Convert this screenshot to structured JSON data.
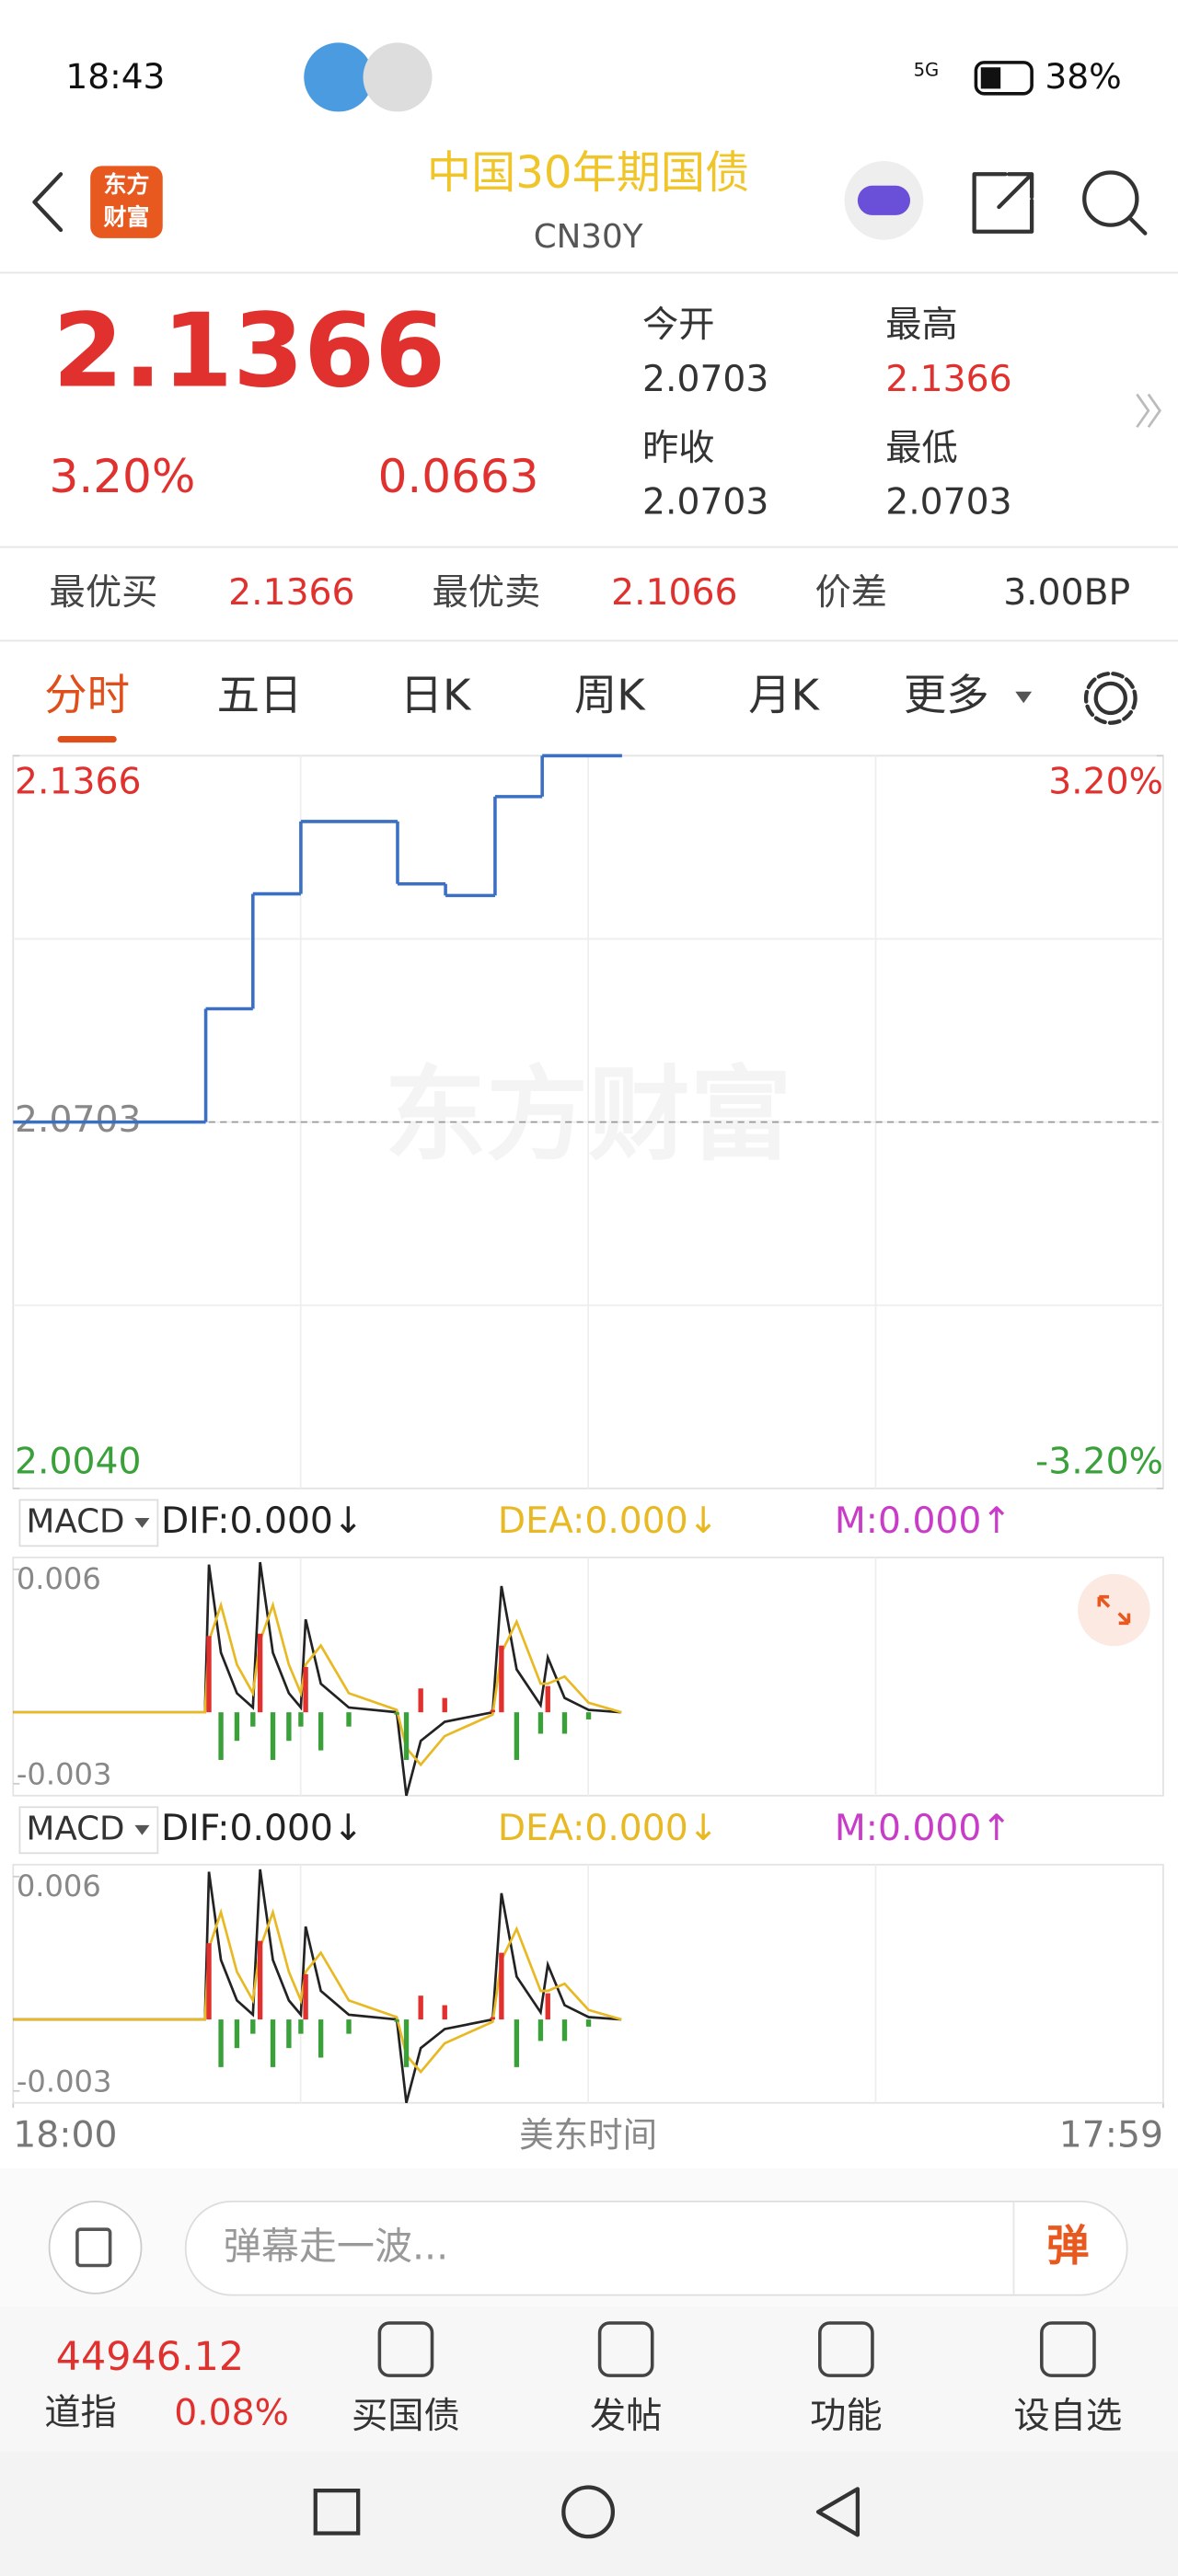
{
  "status_bar": {
    "time": "18:43",
    "network": "5G",
    "battery": "38%"
  },
  "header": {
    "logo_line1": "东方",
    "logo_line2": "财富",
    "title": "中国30年期国债",
    "code": "CN30Y"
  },
  "quote": {
    "price": "2.1366",
    "change_pct": "3.20%",
    "change": "0.0663",
    "open_label": "今开",
    "open": "2.0703",
    "high_label": "最高",
    "high": "2.1366",
    "prev_close_label": "昨收",
    "prev_close": "2.0703",
    "low_label": "最低",
    "low": "2.0703"
  },
  "book": {
    "bid_label": "最优买",
    "bid": "2.1366",
    "ask_label": "最优卖",
    "ask": "2.1066",
    "spread_label": "价差",
    "spread": "3.00BP"
  },
  "tabs": [
    "分时",
    "五日",
    "日K",
    "周K",
    "月K",
    "更多"
  ],
  "chart_data": [
    {
      "type": "line",
      "step": true,
      "watermark": "东方财富",
      "xlabel": "美东时间",
      "x": [
        0,
        241,
        300,
        360,
        481,
        541,
        603,
        662,
        761
      ],
      "series": [
        {
          "color": "#3a6fc4",
          "values": [
            2.0703,
            2.0908,
            2.1116,
            2.1247,
            2.1134,
            2.1113,
            2.1292,
            2.1366,
            2.1366
          ]
        }
      ],
      "xlim": [
        0,
        1439
      ],
      "xticks": [
        {
          "value": 0,
          "label": "18:00"
        },
        {
          "value": 1439,
          "label": "17:59"
        }
      ],
      "ylim": [
        2.004,
        2.1366
      ],
      "yticks": [
        2.1366,
        2.0703,
        2.004
      ],
      "ytick_labels": [
        "2.1366",
        "2.0703",
        "2.0040"
      ],
      "y2lim": [
        -3.2,
        3.2
      ],
      "y2ticks": [
        {
          "value": 3.2,
          "label": "3.20%"
        },
        {
          "value": -3.2,
          "label": "-3.20%"
        }
      ],
      "baseline": 2.0703,
      "grid": true
    },
    {
      "type": "macd",
      "indicator": "MACD",
      "x": [
        0,
        240,
        245,
        260,
        280,
        300,
        309,
        325,
        345,
        360,
        366,
        385,
        420,
        480,
        492,
        510,
        540,
        600,
        611,
        630,
        660,
        669,
        690,
        720,
        761
      ],
      "xlim": [
        0,
        1439
      ],
      "ylim": [
        -0.0035,
        0.0065
      ],
      "yticks": [
        0.006,
        -0.003
      ],
      "series": [
        {
          "name": "DIF:0.000↓",
          "kind": "line",
          "color": "#222222",
          "values": [
            0,
            0,
            0.0062,
            0.0025,
            0.0008,
            0.0002,
            0.0063,
            0.0025,
            0.0008,
            0.0002,
            0.0039,
            0.0012,
            0.0002,
            0,
            -0.0035,
            -0.0012,
            -0.0004,
            0,
            0.0053,
            0.0018,
            0.0003,
            0.0023,
            0.0006,
            0.0001,
            0
          ]
        },
        {
          "name": "DEA:0.000↓",
          "kind": "line",
          "color": "#e8b923",
          "values": [
            0,
            0,
            0.003,
            0.0045,
            0.002,
            0.0008,
            0.003,
            0.0045,
            0.002,
            0.0008,
            0.002,
            0.0028,
            0.0008,
            0.0001,
            -0.0015,
            -0.0022,
            -0.001,
            -0.0001,
            0.0025,
            0.0038,
            0.0012,
            0.0012,
            0.0015,
            0.0004,
            0
          ]
        },
        {
          "name": "M:0.000↑",
          "kind": "bar",
          "color": "#c83cc8",
          "up_color": "#e0312f",
          "down_color": "#3aa03a",
          "values": [
            0,
            0,
            0.0032,
            -0.002,
            -0.0012,
            -0.0006,
            0.0033,
            -0.002,
            -0.0012,
            -0.0006,
            0.0019,
            -0.0016,
            -0.0006,
            -0.0001,
            -0.002,
            0.001,
            0.0006,
            0.0001,
            0.0028,
            -0.002,
            -0.0009,
            0.0011,
            -0.0009,
            -0.0003,
            0
          ]
        }
      ]
    }
  ],
  "comment_bar": {
    "placeholder": "弹幕走一波...",
    "button": "弹"
  },
  "bottom_nav": {
    "index_value": "44946.12",
    "index_name": "道指",
    "index_change": "0.08%",
    "items": [
      "买国债",
      "发帖",
      "功能",
      "设自选"
    ]
  }
}
